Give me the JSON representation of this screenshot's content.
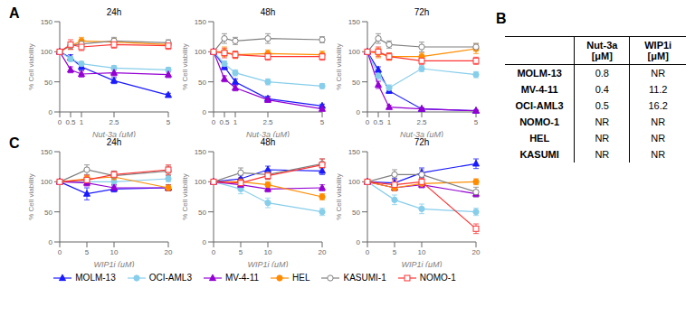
{
  "chart_data": [
    {
      "type": "line",
      "title": "24h",
      "annotation": "A",
      "legend": "bottom",
      "grid": false,
      "xlabel": "Nut-3a (μM)",
      "ylabel": "% Cell viability",
      "x": [
        0,
        0.5,
        1,
        2.5,
        5
      ],
      "xlim": [
        0,
        5
      ],
      "xticks": [
        0,
        0.5,
        1,
        2.5,
        5
      ],
      "ylim": [
        0,
        150
      ],
      "yticks": [
        0,
        50,
        100,
        150
      ],
      "series": [
        {
          "name": "MOLM-13",
          "color": "#1a1aff",
          "marker": "triangle",
          "values": [
            100,
            90,
            75,
            52,
            28
          ],
          "errors": [
            2,
            5,
            5,
            5,
            3
          ]
        },
        {
          "name": "OCI-AML3",
          "color": "#87ceeb",
          "marker": "circle",
          "values": [
            100,
            88,
            80,
            73,
            70
          ],
          "errors": [
            2,
            4,
            4,
            4,
            4
          ]
        },
        {
          "name": "MV-4-11",
          "color": "#9400d3",
          "marker": "triangle",
          "values": [
            100,
            70,
            63,
            65,
            62
          ],
          "errors": [
            2,
            5,
            5,
            5,
            5
          ]
        },
        {
          "name": "HEL",
          "color": "#ff8c00",
          "marker": "circle",
          "values": [
            100,
            110,
            118,
            116,
            112
          ],
          "errors": [
            2,
            6,
            6,
            6,
            5
          ]
        },
        {
          "name": "KASUMI-1",
          "color": "#808080",
          "marker": "open_circle",
          "values": [
            100,
            110,
            113,
            118,
            115
          ],
          "errors": [
            2,
            5,
            5,
            6,
            5
          ]
        },
        {
          "name": "NOMO-1",
          "color": "#ff3333",
          "marker": "open_square",
          "values": [
            100,
            112,
            108,
            112,
            110
          ],
          "errors": [
            2,
            8,
            6,
            6,
            6
          ]
        }
      ]
    },
    {
      "type": "line",
      "title": "48h",
      "grid": false,
      "xlabel": "Nut-3a (μM)",
      "ylabel": "% Cell viability",
      "x": [
        0,
        0.5,
        1,
        2.5,
        5
      ],
      "xlim": [
        0,
        5
      ],
      "xticks": [
        0,
        0.5,
        1,
        2.5,
        5
      ],
      "ylim": [
        0,
        150
      ],
      "yticks": [
        0,
        50,
        100,
        150
      ],
      "series": [
        {
          "name": "MOLM-13",
          "color": "#1a1aff",
          "marker": "triangle",
          "values": [
            100,
            75,
            50,
            22,
            10
          ],
          "errors": [
            2,
            5,
            5,
            4,
            3
          ]
        },
        {
          "name": "OCI-AML3",
          "color": "#87ceeb",
          "marker": "circle",
          "values": [
            100,
            80,
            65,
            50,
            43
          ],
          "errors": [
            2,
            5,
            5,
            5,
            4
          ]
        },
        {
          "name": "MV-4-11",
          "color": "#9400d3",
          "marker": "triangle",
          "values": [
            100,
            55,
            40,
            20,
            5
          ],
          "errors": [
            2,
            5,
            5,
            4,
            2
          ]
        },
        {
          "name": "HEL",
          "color": "#ff8c00",
          "marker": "circle",
          "values": [
            100,
            100,
            95,
            97,
            95
          ],
          "errors": [
            2,
            8,
            6,
            6,
            6
          ]
        },
        {
          "name": "KASUMI-1",
          "color": "#808080",
          "marker": "open_circle",
          "values": [
            100,
            122,
            118,
            122,
            120
          ],
          "errors": [
            2,
            8,
            6,
            8,
            5
          ]
        },
        {
          "name": "NOMO-1",
          "color": "#ff3333",
          "marker": "open_square",
          "values": [
            100,
            98,
            95,
            92,
            92
          ],
          "errors": [
            2,
            8,
            6,
            6,
            6
          ]
        }
      ]
    },
    {
      "type": "line",
      "title": "72h",
      "grid": false,
      "xlabel": "Nut-3a (μM)",
      "ylabel": "% Cell viability",
      "x": [
        0,
        0.5,
        1,
        2.5,
        5
      ],
      "xlim": [
        0,
        5
      ],
      "xticks": [
        0,
        0.5,
        1,
        2.5,
        5
      ],
      "ylim": [
        0,
        150
      ],
      "yticks": [
        0,
        50,
        100,
        150
      ],
      "series": [
        {
          "name": "MOLM-13",
          "color": "#1a1aff",
          "marker": "triangle",
          "values": [
            100,
            70,
            35,
            5,
            2
          ],
          "errors": [
            2,
            5,
            4,
            2,
            1
          ]
        },
        {
          "name": "OCI-AML3",
          "color": "#87ceeb",
          "marker": "circle",
          "values": [
            100,
            60,
            40,
            72,
            62
          ],
          "errors": [
            2,
            6,
            5,
            5,
            5
          ]
        },
        {
          "name": "MV-4-11",
          "color": "#9400d3",
          "marker": "triangle",
          "values": [
            100,
            45,
            8,
            5,
            2
          ],
          "errors": [
            2,
            6,
            3,
            2,
            1
          ]
        },
        {
          "name": "HEL",
          "color": "#ff8c00",
          "marker": "circle",
          "values": [
            100,
            98,
            92,
            92,
            105
          ],
          "errors": [
            2,
            8,
            6,
            6,
            8
          ]
        },
        {
          "name": "KASUMI-1",
          "color": "#808080",
          "marker": "open_circle",
          "values": [
            100,
            122,
            112,
            108,
            108
          ],
          "errors": [
            2,
            8,
            6,
            8,
            6
          ]
        },
        {
          "name": "NOMO-1",
          "color": "#ff3333",
          "marker": "open_square",
          "values": [
            100,
            100,
            92,
            85,
            85
          ],
          "errors": [
            2,
            8,
            6,
            6,
            6
          ]
        }
      ]
    },
    {
      "type": "line",
      "title": "24h",
      "annotation": "C",
      "grid": false,
      "xlabel": "WIP1i (μM)",
      "ylabel": "% Cell viability",
      "x": [
        0,
        5,
        10,
        20
      ],
      "xlim": [
        0,
        20
      ],
      "xticks": [
        0,
        5,
        10,
        20
      ],
      "ylim": [
        0,
        150
      ],
      "yticks": [
        0,
        50,
        100,
        150
      ],
      "series": [
        {
          "name": "MOLM-13",
          "color": "#1a1aff",
          "marker": "triangle",
          "values": [
            100,
            80,
            88,
            90
          ],
          "errors": [
            2,
            10,
            5,
            5
          ]
        },
        {
          "name": "OCI-AML3",
          "color": "#87ceeb",
          "marker": "circle",
          "values": [
            100,
            100,
            100,
            105
          ],
          "errors": [
            2,
            5,
            5,
            5
          ]
        },
        {
          "name": "MV-4-11",
          "color": "#9400d3",
          "marker": "triangle",
          "values": [
            100,
            98,
            90,
            90
          ],
          "errors": [
            2,
            5,
            5,
            5
          ]
        },
        {
          "name": "HEL",
          "color": "#ff8c00",
          "marker": "circle",
          "values": [
            100,
            105,
            108,
            90
          ],
          "errors": [
            2,
            5,
            5,
            5
          ]
        },
        {
          "name": "KASUMI-1",
          "color": "#808080",
          "marker": "open_circle",
          "values": [
            100,
            120,
            110,
            118
          ],
          "errors": [
            2,
            8,
            8,
            8
          ]
        },
        {
          "name": "NOMO-1",
          "color": "#ff3333",
          "marker": "open_square",
          "values": [
            100,
            103,
            112,
            120
          ],
          "errors": [
            2,
            8,
            5,
            8
          ]
        }
      ]
    },
    {
      "type": "line",
      "title": "48h",
      "grid": false,
      "xlabel": "WIP1i (μM)",
      "ylabel": "% Cell viability",
      "x": [
        0,
        5,
        10,
        20
      ],
      "xlim": [
        0,
        20
      ],
      "xticks": [
        0,
        5,
        10,
        20
      ],
      "ylim": [
        0,
        150
      ],
      "yticks": [
        0,
        50,
        100,
        150
      ],
      "series": [
        {
          "name": "MOLM-13",
          "color": "#1a1aff",
          "marker": "triangle",
          "values": [
            100,
            105,
            120,
            118
          ],
          "errors": [
            2,
            6,
            6,
            6
          ]
        },
        {
          "name": "OCI-AML3",
          "color": "#87ceeb",
          "marker": "circle",
          "values": [
            100,
            88,
            65,
            50
          ],
          "errors": [
            2,
            8,
            8,
            6
          ]
        },
        {
          "name": "MV-4-11",
          "color": "#9400d3",
          "marker": "triangle",
          "values": [
            100,
            95,
            88,
            90
          ],
          "errors": [
            2,
            5,
            5,
            5
          ]
        },
        {
          "name": "HEL",
          "color": "#ff8c00",
          "marker": "circle",
          "values": [
            100,
            100,
            95,
            75
          ],
          "errors": [
            2,
            5,
            5,
            5
          ]
        },
        {
          "name": "KASUMI-1",
          "color": "#808080",
          "marker": "open_circle",
          "values": [
            100,
            115,
            112,
            130
          ],
          "errors": [
            2,
            8,
            8,
            8
          ]
        },
        {
          "name": "NOMO-1",
          "color": "#ff3333",
          "marker": "open_square",
          "values": [
            100,
            98,
            110,
            128
          ],
          "errors": [
            2,
            8,
            6,
            10
          ]
        }
      ]
    },
    {
      "type": "line",
      "title": "72h",
      "grid": false,
      "xlabel": "WIP1i (μM)",
      "ylabel": "% Cell viability",
      "x": [
        0,
        5,
        10,
        20
      ],
      "xlim": [
        0,
        20
      ],
      "xticks": [
        0,
        5,
        10,
        20
      ],
      "ylim": [
        0,
        150
      ],
      "yticks": [
        0,
        50,
        100,
        150
      ],
      "series": [
        {
          "name": "MOLM-13",
          "color": "#1a1aff",
          "marker": "triangle",
          "values": [
            100,
            98,
            115,
            130
          ],
          "errors": [
            2,
            8,
            8,
            8
          ]
        },
        {
          "name": "OCI-AML3",
          "color": "#87ceeb",
          "marker": "circle",
          "values": [
            100,
            70,
            55,
            50
          ],
          "errors": [
            2,
            8,
            8,
            6
          ]
        },
        {
          "name": "MV-4-11",
          "color": "#9400d3",
          "marker": "triangle",
          "values": [
            100,
            90,
            95,
            80
          ],
          "errors": [
            2,
            5,
            5,
            5
          ]
        },
        {
          "name": "HEL",
          "color": "#ff8c00",
          "marker": "circle",
          "values": [
            100,
            90,
            97,
            100
          ],
          "errors": [
            2,
            5,
            5,
            5
          ]
        },
        {
          "name": "KASUMI-1",
          "color": "#808080",
          "marker": "open_circle",
          "values": [
            100,
            112,
            112,
            83
          ],
          "errors": [
            2,
            8,
            8,
            8
          ]
        },
        {
          "name": "NOMO-1",
          "color": "#ff3333",
          "marker": "open_square",
          "values": [
            100,
            95,
            100,
            22
          ],
          "errors": [
            2,
            8,
            6,
            8
          ]
        }
      ]
    },
    {
      "type": "table",
      "annotation": "B",
      "categories": [
        "MOLM-13",
        "MV-4-11",
        "OCI-AML3",
        "NOMO-1",
        "HEL",
        "KASUMI"
      ],
      "series": [
        {
          "name": "Nut-3a\n[μM]",
          "values": [
            0.8,
            0.4,
            0.5,
            null,
            null,
            null
          ],
          "value_labels": [
            "0.8",
            "0.4",
            "0.5",
            "NR",
            "NR",
            "NR"
          ]
        },
        {
          "name": "WIP1i\n[μM]",
          "values": [
            null,
            11.2,
            16.2,
            null,
            null,
            null
          ],
          "value_labels": [
            "NR",
            "11.2",
            "16.2",
            "NR",
            "NR",
            "NR"
          ]
        }
      ]
    }
  ]
}
